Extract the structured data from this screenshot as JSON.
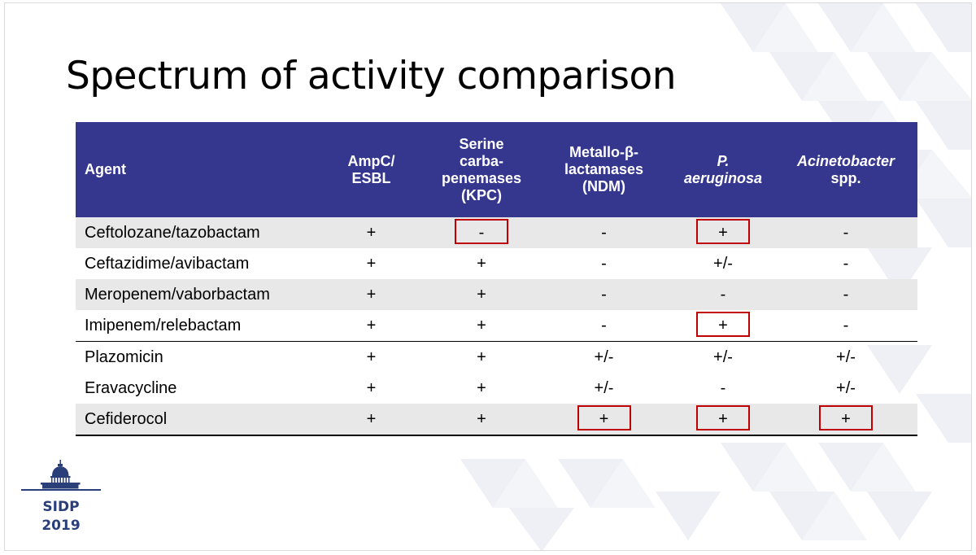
{
  "title": "Spectrum of activity comparison",
  "table": {
    "headers": [
      {
        "lines": [
          "Agent"
        ]
      },
      {
        "lines": [
          "AmpC/",
          "ESBL"
        ]
      },
      {
        "lines": [
          "Serine",
          "carba-",
          "penemases",
          "(KPC)"
        ]
      },
      {
        "lines": [
          "Metallo-β-",
          "lactamases",
          "(NDM)"
        ]
      },
      {
        "lines": [
          "P.",
          "aeruginosa"
        ]
      },
      {
        "lines": [
          "Acinetobacter",
          "spp."
        ]
      }
    ],
    "rows": [
      {
        "agent": "Ceftolozane/tazobactam",
        "values": [
          "+",
          "-",
          "-",
          "+",
          "-"
        ]
      },
      {
        "agent": "Ceftazidime/avibactam",
        "values": [
          "+",
          "+",
          "-",
          "+/-",
          "-"
        ]
      },
      {
        "agent": "Meropenem/vaborbactam",
        "values": [
          "+",
          "+",
          "-",
          "-",
          "-"
        ]
      },
      {
        "agent": "Imipenem/relebactam",
        "values": [
          "+",
          "+",
          "-",
          "+",
          "-"
        ]
      },
      {
        "agent": "Plazomicin",
        "values": [
          "+",
          "+",
          "+/-",
          "+/-",
          "+/-"
        ]
      },
      {
        "agent": "Eravacycline",
        "values": [
          "+",
          "+",
          "+/-",
          "-",
          "+/-"
        ]
      },
      {
        "agent": "Cefiderocol",
        "values": [
          "+",
          "+",
          "+",
          "+",
          "+"
        ]
      }
    ]
  },
  "logo": {
    "line1": "SIDP",
    "line2": "2019",
    "icon": "capitol-dome-icon"
  },
  "colors": {
    "header_bg": "#35378f",
    "highlight_box": "#c00000",
    "logo_text": "#2a3f7a"
  }
}
